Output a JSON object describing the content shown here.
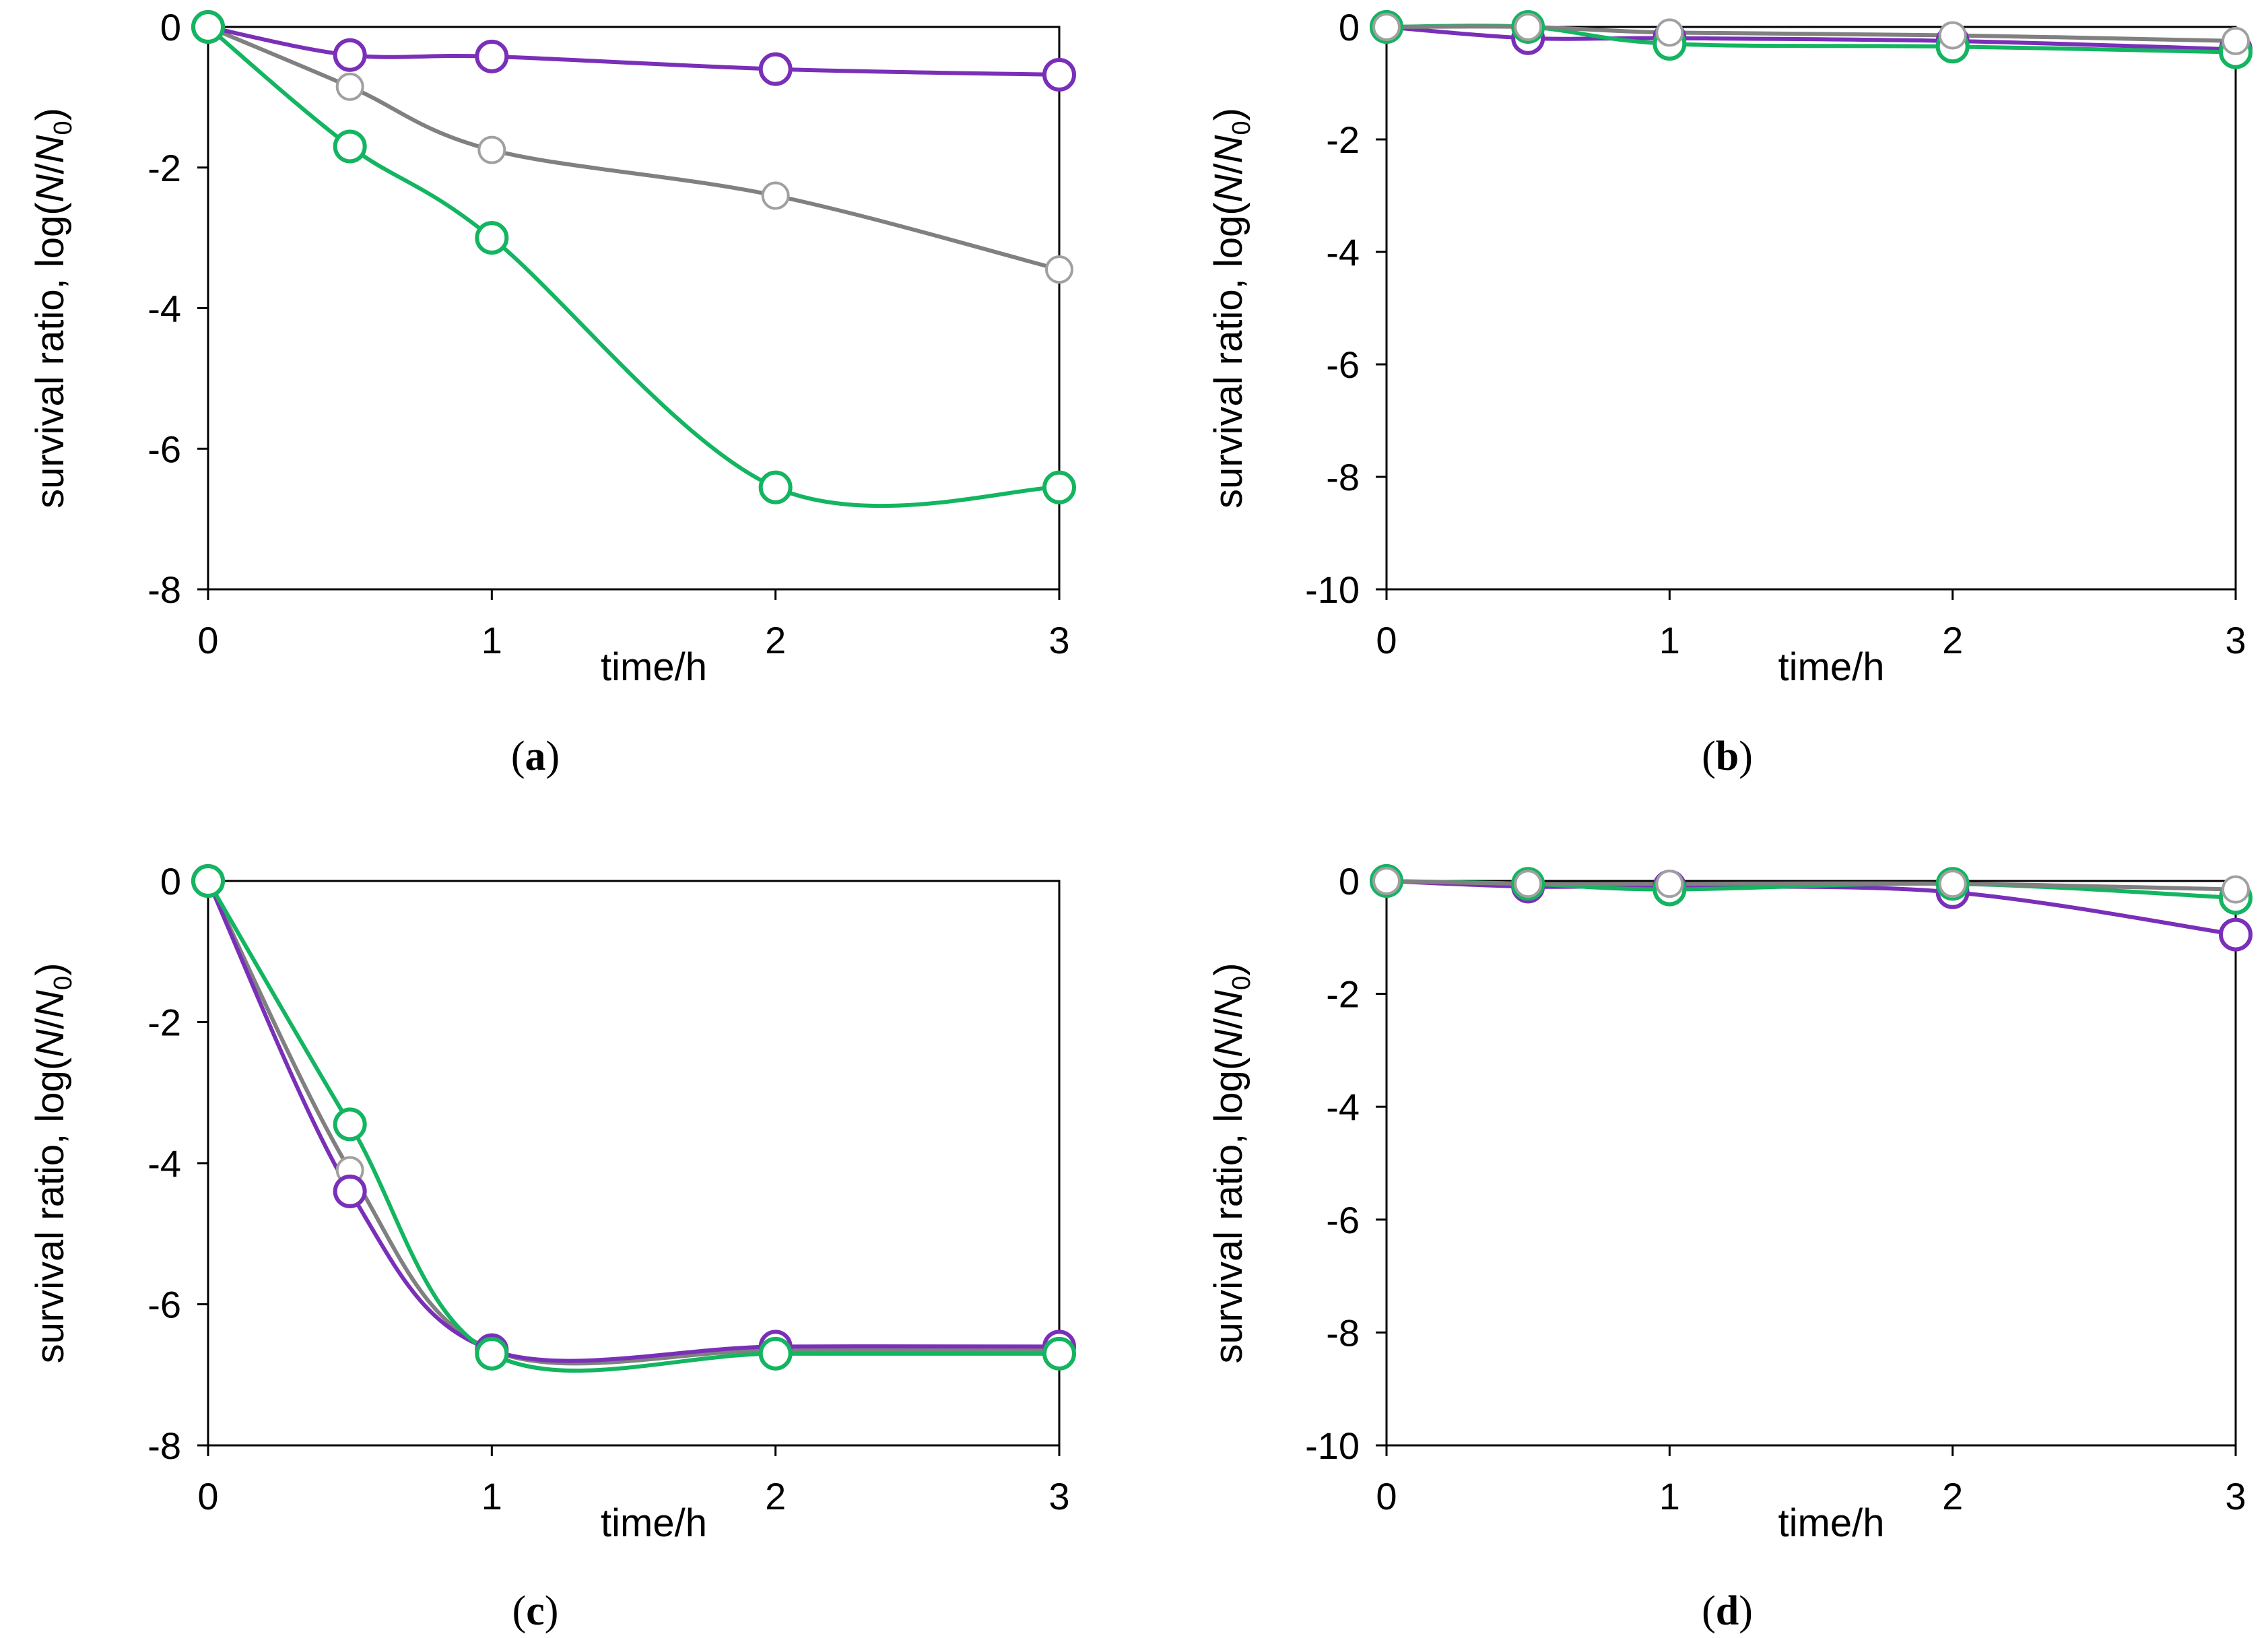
{
  "figure": {
    "x_title": "time/h",
    "y_title_prefix": "survival ratio, log(",
    "y_title_N": "N",
    "y_title_slash": "/",
    "y_title_N0": "N",
    "y_title_sub": "0",
    "y_title_suffix": ")"
  },
  "colors": {
    "purple": "#7a2fb8",
    "gray": "#808080",
    "green": "#13b560",
    "axis": "#000000",
    "marker_fill": "#ffffff"
  },
  "chart_data": [
    {
      "type": "line",
      "panel": "a",
      "label_open": "(",
      "label_letter": "a",
      "label_close": ")",
      "xlabel": "time/h",
      "ylabel": "survival ratio, log(N/N0)",
      "xlim": [
        0,
        3
      ],
      "ylim": [
        -8,
        0
      ],
      "x_ticks": [
        0,
        1,
        2,
        3
      ],
      "y_ticks": [
        0,
        -2,
        -4,
        -6,
        -8
      ],
      "x": [
        0,
        0.5,
        1,
        2,
        3
      ],
      "series": [
        {
          "name": "gray",
          "color": "gray",
          "values": [
            0,
            -0.85,
            -1.75,
            -2.4,
            -3.45
          ]
        },
        {
          "name": "purple",
          "color": "purple",
          "values": [
            0,
            -0.4,
            -0.42,
            -0.6,
            -0.68
          ]
        },
        {
          "name": "green",
          "color": "green",
          "values": [
            0,
            -1.7,
            -3.0,
            -6.55,
            -6.55
          ]
        }
      ]
    },
    {
      "type": "line",
      "panel": "b",
      "label_open": "(",
      "label_letter": "b",
      "label_close": ")",
      "xlabel": "time/h",
      "ylabel": "survival ratio, log(N/N0)",
      "xlim": [
        0,
        3
      ],
      "ylim": [
        -10,
        0
      ],
      "x_ticks": [
        0,
        1,
        2,
        3
      ],
      "y_ticks": [
        0,
        -2,
        -4,
        -6,
        -8,
        -10
      ],
      "x": [
        0,
        0.5,
        1,
        2,
        3
      ],
      "series": [
        {
          "name": "purple",
          "color": "purple",
          "values": [
            0,
            -0.2,
            -0.2,
            -0.25,
            -0.4
          ]
        },
        {
          "name": "green",
          "color": "green",
          "values": [
            0,
            0,
            -0.3,
            -0.35,
            -0.45
          ]
        },
        {
          "name": "gray",
          "color": "gray",
          "values": [
            0,
            0,
            -0.1,
            -0.15,
            -0.25
          ]
        }
      ]
    },
    {
      "type": "line",
      "panel": "c",
      "label_open": "(",
      "label_letter": "c",
      "label_close": ")",
      "xlabel": "time/h",
      "ylabel": "survival ratio, log(N/N0)",
      "xlim": [
        0,
        3
      ],
      "ylim": [
        -8,
        0
      ],
      "x_ticks": [
        0,
        1,
        2,
        3
      ],
      "y_ticks": [
        0,
        -2,
        -4,
        -6,
        -8
      ],
      "x": [
        0,
        0.5,
        1,
        2,
        3
      ],
      "series": [
        {
          "name": "gray",
          "color": "gray",
          "values": [
            0,
            -4.1,
            -6.65,
            -6.65,
            -6.65
          ]
        },
        {
          "name": "purple",
          "color": "purple",
          "values": [
            0,
            -4.4,
            -6.65,
            -6.6,
            -6.6
          ]
        },
        {
          "name": "green",
          "color": "green",
          "values": [
            0,
            -3.45,
            -6.7,
            -6.7,
            -6.7
          ]
        }
      ]
    },
    {
      "type": "line",
      "panel": "d",
      "label_open": "(",
      "label_letter": "d",
      "label_close": ")",
      "xlabel": "time/h",
      "ylabel": "survival ratio, log(N/N0)",
      "xlim": [
        0,
        3
      ],
      "ylim": [
        -10,
        0
      ],
      "x_ticks": [
        0,
        1,
        2,
        3
      ],
      "y_ticks": [
        0,
        -2,
        -4,
        -6,
        -8,
        -10
      ],
      "x": [
        0,
        0.5,
        1,
        2,
        3
      ],
      "series": [
        {
          "name": "purple",
          "color": "purple",
          "values": [
            0,
            -0.1,
            -0.1,
            -0.2,
            -0.95
          ]
        },
        {
          "name": "green",
          "color": "green",
          "values": [
            0,
            -0.05,
            -0.15,
            -0.05,
            -0.3
          ]
        },
        {
          "name": "gray",
          "color": "gray",
          "values": [
            0,
            -0.05,
            -0.05,
            -0.05,
            -0.15
          ]
        }
      ]
    }
  ]
}
